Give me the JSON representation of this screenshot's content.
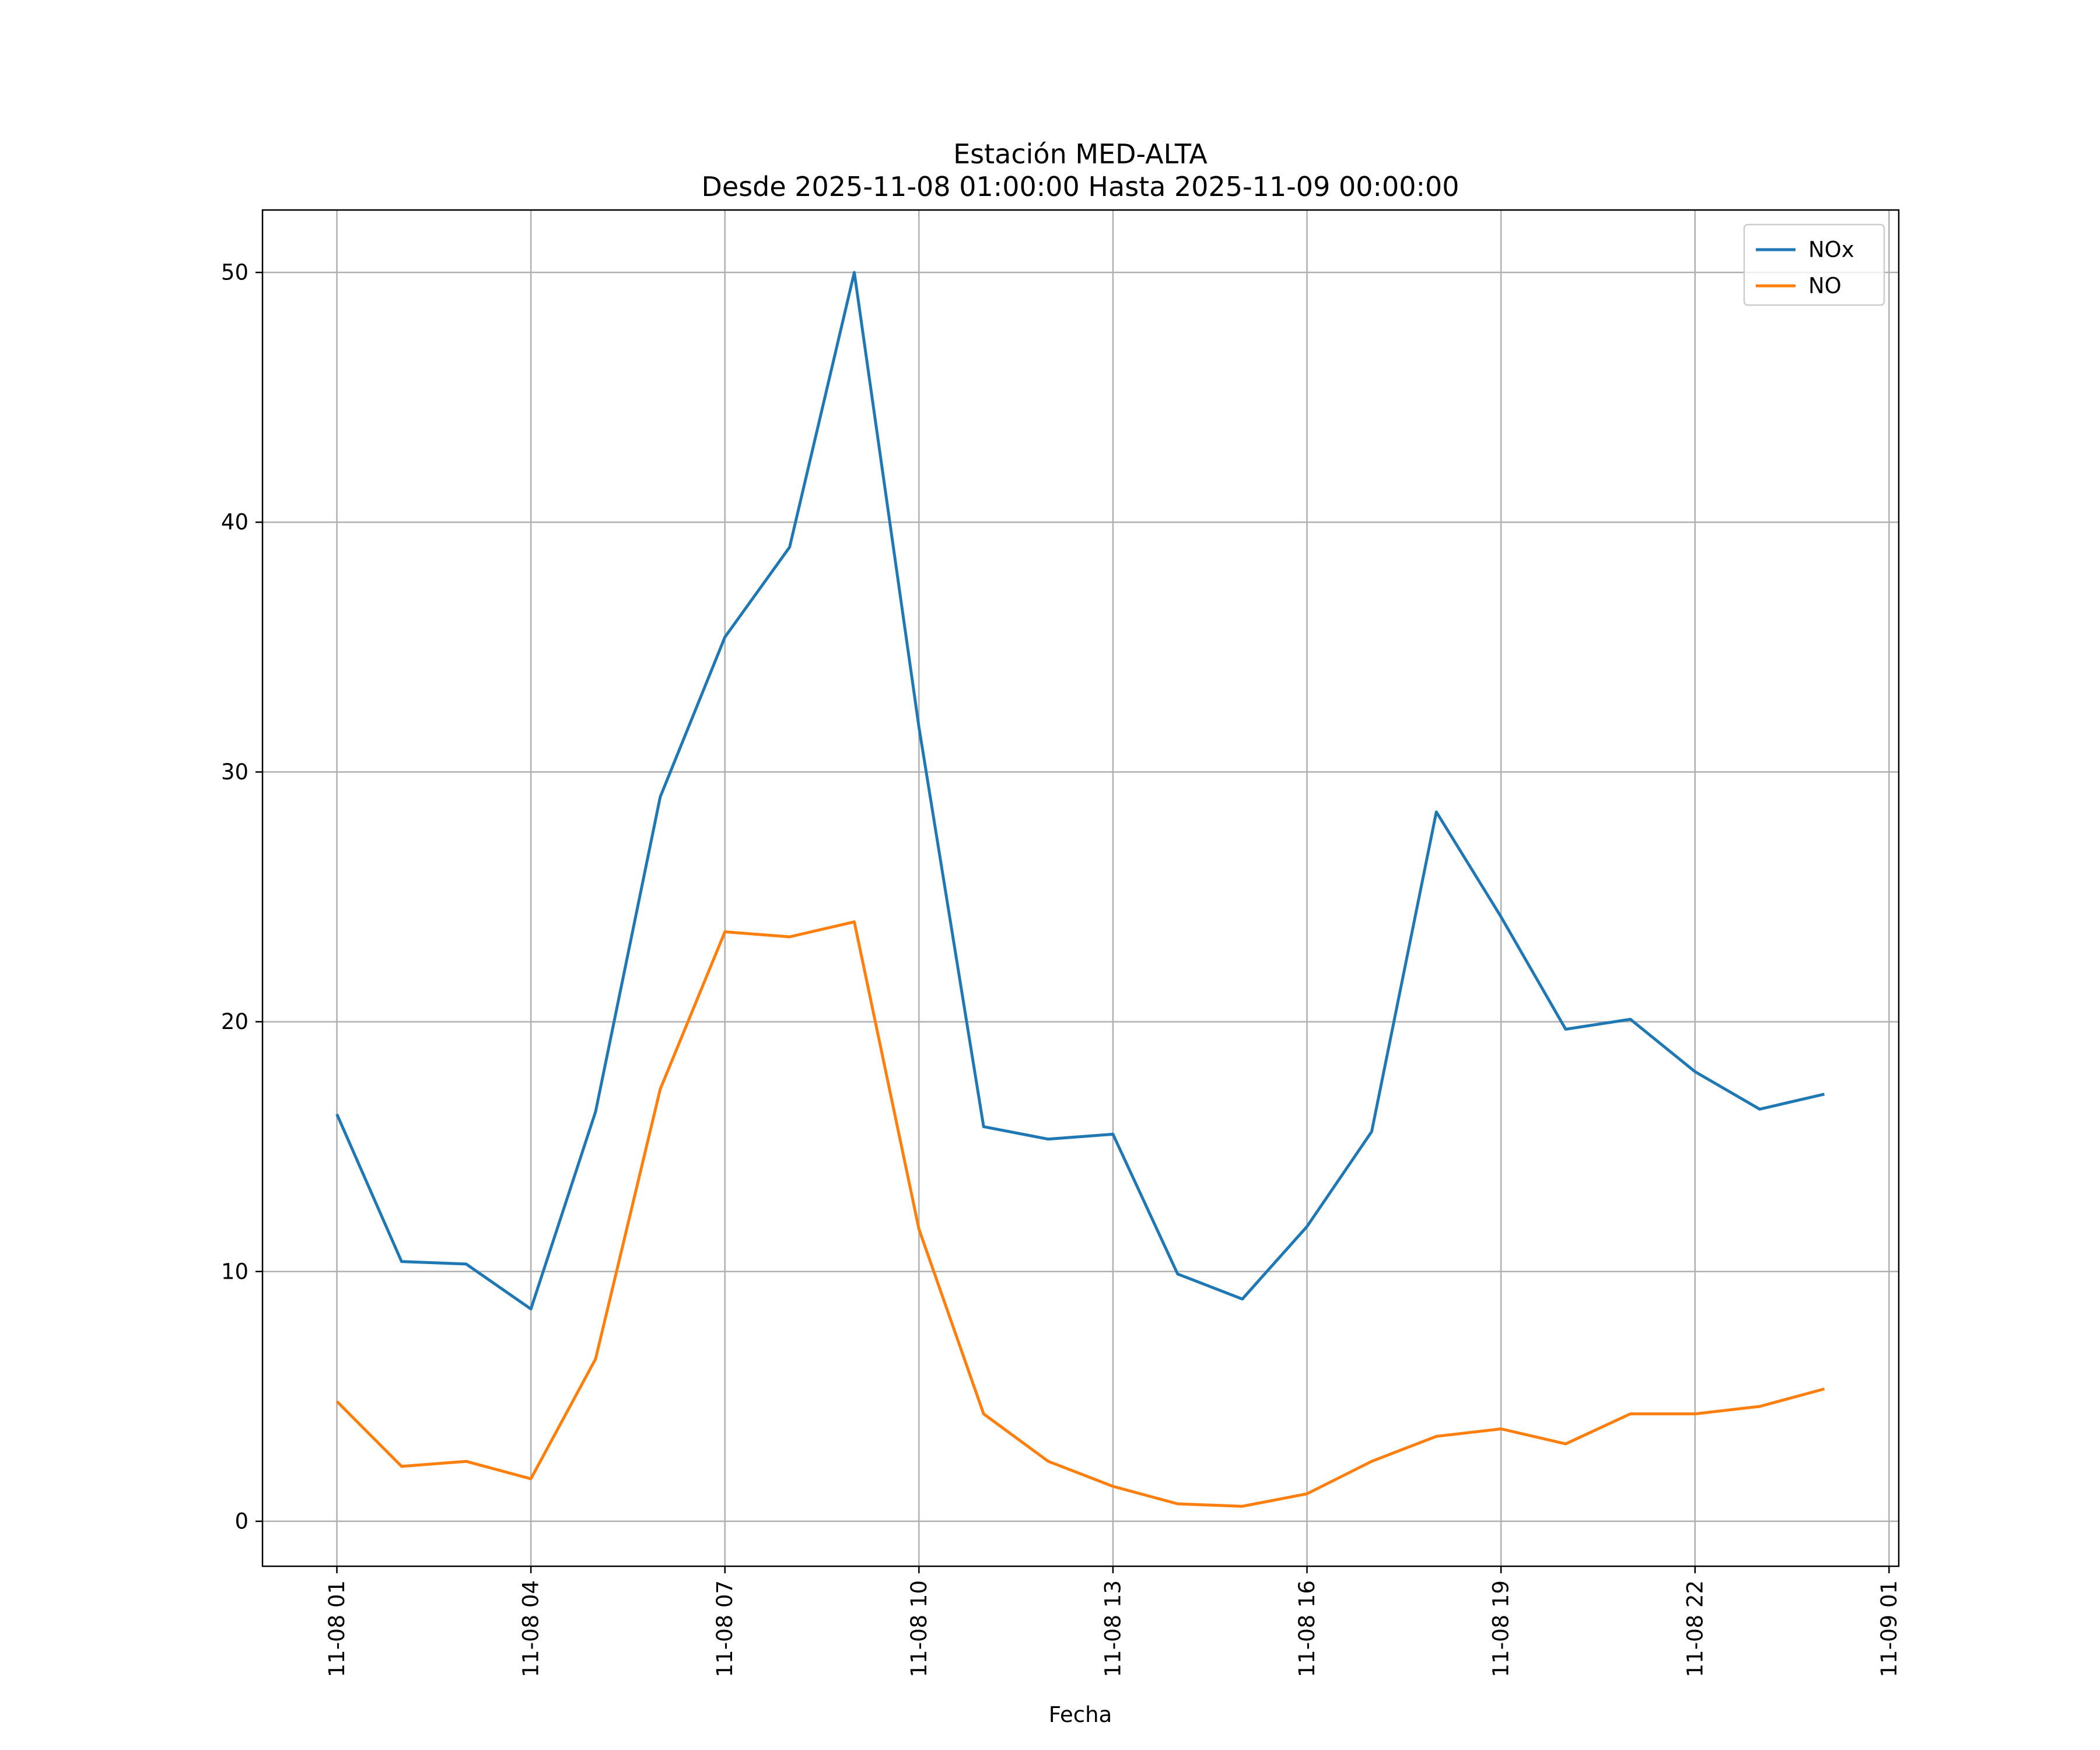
{
  "chart_data": {
    "type": "line",
    "title": "Estación MED-ALTA",
    "subtitle": "Desde 2025-11-08 01:00:00 Hasta 2025-11-09 00:00:00",
    "xlabel": "Fecha",
    "ylabel": "",
    "x": [
      "2025-11-08 01:00",
      "2025-11-08 02:00",
      "2025-11-08 03:00",
      "2025-11-08 04:00",
      "2025-11-08 05:00",
      "2025-11-08 06:00",
      "2025-11-08 07:00",
      "2025-11-08 08:00",
      "2025-11-08 09:00",
      "2025-11-08 10:00",
      "2025-11-08 11:00",
      "2025-11-08 12:00",
      "2025-11-08 13:00",
      "2025-11-08 14:00",
      "2025-11-08 15:00",
      "2025-11-08 16:00",
      "2025-11-08 17:00",
      "2025-11-08 18:00",
      "2025-11-08 19:00",
      "2025-11-08 20:00",
      "2025-11-08 21:00",
      "2025-11-08 22:00",
      "2025-11-08 23:00",
      "2025-11-09 00:00"
    ],
    "series": [
      {
        "name": "NOx",
        "color": "#1f77b4",
        "values": [
          16.3,
          10.4,
          10.3,
          8.5,
          16.4,
          29.0,
          35.4,
          39.0,
          50.0,
          31.8,
          15.8,
          15.3,
          15.5,
          9.9,
          8.9,
          11.8,
          15.6,
          28.4,
          24.2,
          19.7,
          20.1,
          18.0,
          16.5,
          17.1
        ]
      },
      {
        "name": "NO",
        "color": "#ff7f0e",
        "values": [
          4.8,
          2.2,
          2.4,
          1.7,
          6.5,
          17.3,
          23.6,
          23.4,
          24.0,
          11.7,
          4.3,
          2.4,
          1.4,
          0.7,
          0.6,
          1.1,
          2.4,
          3.4,
          3.7,
          3.1,
          4.3,
          4.3,
          4.6,
          5.3
        ]
      }
    ],
    "xticks": [
      "2025-11-08 01:00",
      "2025-11-08 04:00",
      "2025-11-08 07:00",
      "2025-11-08 10:00",
      "2025-11-08 13:00",
      "2025-11-08 16:00",
      "2025-11-08 19:00",
      "2025-11-08 22:00",
      "2025-11-09 01:00"
    ],
    "xtick_labels": [
      "11-08 01",
      "11-08 04",
      "11-08 07",
      "11-08 10",
      "11-08 13",
      "11-08 16",
      "11-08 19",
      "11-08 22",
      "11-09 01"
    ],
    "xlim": [
      "2025-11-07 23:51",
      "2025-11-09 01:09"
    ],
    "yticks": [
      0,
      10,
      20,
      30,
      40,
      50
    ],
    "ylim": [
      -1.8,
      52.5
    ],
    "grid": true,
    "legend": "top-right"
  }
}
